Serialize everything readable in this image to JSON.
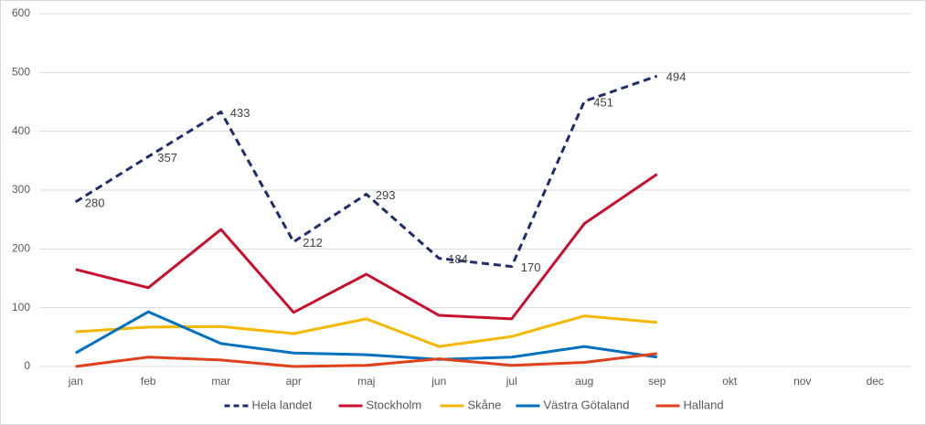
{
  "chart_data": {
    "type": "line",
    "categories": [
      "jan",
      "feb",
      "mar",
      "apr",
      "maj",
      "jun",
      "jul",
      "aug",
      "sep",
      "okt",
      "nov",
      "dec"
    ],
    "series": [
      {
        "name": "Hela landet",
        "color": "#1f2d6e",
        "line_style": "dashed",
        "data_labels": true,
        "values": [
          280,
          357,
          433,
          212,
          293,
          184,
          170,
          451,
          494,
          null,
          null,
          null
        ]
      },
      {
        "name": "Stockholm",
        "color": "#c8102e",
        "values": [
          165,
          134,
          233,
          92,
          157,
          87,
          81,
          243,
          327,
          null,
          null,
          null
        ]
      },
      {
        "name": "Skåne",
        "color": "#f5b800",
        "values": [
          59,
          67,
          68,
          56,
          81,
          34,
          51,
          86,
          75,
          null,
          null,
          null
        ]
      },
      {
        "name": "Västra Götaland",
        "color": "#0070c0",
        "values": [
          23,
          93,
          39,
          23,
          20,
          12,
          16,
          34,
          16,
          null,
          null,
          null
        ]
      },
      {
        "name": "Halland",
        "color": "#e0401c",
        "values": [
          0,
          16,
          11,
          0,
          2,
          13,
          2,
          7,
          22,
          null,
          null,
          null
        ]
      }
    ],
    "ylim": [
      0,
      600
    ],
    "yticks": [
      0,
      100,
      200,
      300,
      400,
      500,
      600
    ],
    "grid": true,
    "legend": "bottom"
  }
}
